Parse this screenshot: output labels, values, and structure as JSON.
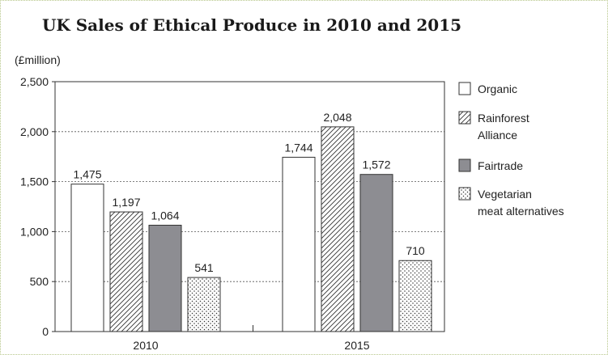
{
  "chart_data": {
    "type": "bar",
    "title": "UK Sales of Ethical Produce in 2010 and 2015",
    "ylabel": "(£million)",
    "xlabel": "",
    "ylim": [
      0,
      2500
    ],
    "yticks": [
      0,
      500,
      1000,
      1500,
      2000,
      2500
    ],
    "ytick_labels": [
      "0",
      "500",
      "1,000",
      "1,500",
      "2,000",
      "2,500"
    ],
    "categories": [
      "2010",
      "2015"
    ],
    "grid": true,
    "legend_position": "right",
    "series": [
      {
        "name": "Organic",
        "pattern": "plain-white",
        "color": "#ffffff",
        "values": [
          1475,
          1744
        ],
        "labels": [
          "1,475",
          "1,744"
        ]
      },
      {
        "name": "Rainforest Alliance",
        "legend_lines": [
          "Rainforest",
          "Alliance"
        ],
        "pattern": "diagonal-hatch",
        "color": "#ffffff",
        "values": [
          1197,
          2048
        ],
        "labels": [
          "1,197",
          "2,048"
        ]
      },
      {
        "name": "Fairtrade",
        "pattern": "solid-gray",
        "color": "#8d8d92",
        "values": [
          1064,
          1572
        ],
        "labels": [
          "1,064",
          "1,572"
        ]
      },
      {
        "name": "Vegetarian meat alternatives",
        "legend_lines": [
          "Vegetarian",
          "meat alternatives"
        ],
        "pattern": "dots",
        "color": "#ffffff",
        "values": [
          541,
          710
        ],
        "labels": [
          "541",
          "710"
        ]
      }
    ]
  },
  "colors": {
    "axis": "#333333",
    "grid": "#555555",
    "bar_stroke": "#333333",
    "fairtrade_fill": "#8d8d92",
    "border": "#b7c78a"
  }
}
